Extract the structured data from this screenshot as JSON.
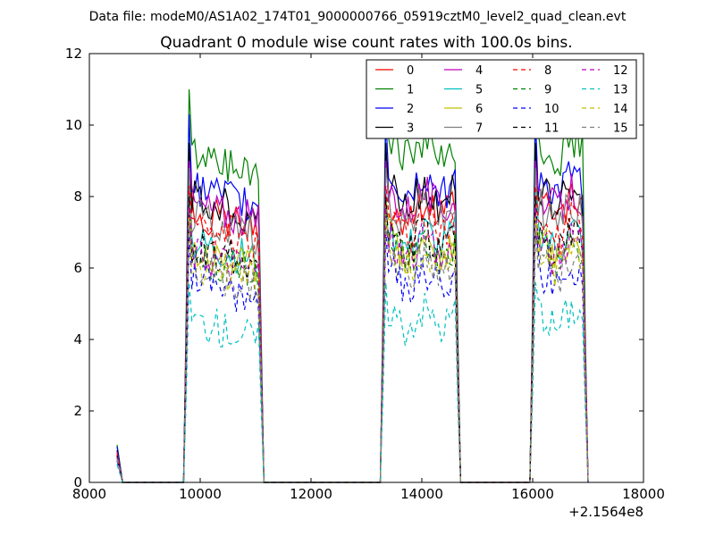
{
  "header": {
    "data_file": "Data file: modeM0/AS1A02_174T01_9000000766_05919cztM0_level2_quad_clean.evt"
  },
  "chart_data": {
    "type": "line",
    "title": "Quadrant 0 module wise count rates with 100.0s bins.",
    "xlabel": "",
    "ylabel": "",
    "x_offset_label": "+2.1564e8",
    "xlim": [
      8000,
      18000
    ],
    "ylim": [
      0,
      12
    ],
    "x_ticks": [
      "8000",
      "10000",
      "12000",
      "14000",
      "16000",
      "18000"
    ],
    "y_ticks": [
      "0",
      "2",
      "4",
      "6",
      "8",
      "10",
      "12"
    ],
    "legend_position": "top-right",
    "segments": [
      {
        "start": 9700,
        "end": 11100
      },
      {
        "start": 13250,
        "end": 14650
      },
      {
        "start": 15950,
        "end": 16950
      }
    ],
    "series": [
      {
        "name": "0",
        "color": "#ff0000",
        "dash": "solid",
        "level": 7.6,
        "peak": 9.0,
        "start": 0.85
      },
      {
        "name": "1",
        "color": "#008000",
        "dash": "solid",
        "level": 9.3,
        "peak": 11.0,
        "start": 1.05
      },
      {
        "name": "2",
        "color": "#0000ff",
        "dash": "solid",
        "level": 8.3,
        "peak": 10.3,
        "start": 1.0
      },
      {
        "name": "3",
        "color": "#000000",
        "dash": "solid",
        "level": 8.0,
        "peak": 9.5,
        "start": 0.9
      },
      {
        "name": "4",
        "color": "#bf00bf",
        "dash": "solid",
        "level": 7.9,
        "peak": 9.0,
        "start": 0.85
      },
      {
        "name": "5",
        "color": "#00bfbf",
        "dash": "solid",
        "level": 6.8,
        "peak": 8.2,
        "start": 0.75
      },
      {
        "name": "6",
        "color": "#bfbf00",
        "dash": "solid",
        "level": 6.6,
        "peak": 7.9,
        "start": 0.7
      },
      {
        "name": "7",
        "color": "#808080",
        "dash": "solid",
        "level": 7.5,
        "peak": 8.8,
        "start": 0.8
      },
      {
        "name": "8",
        "color": "#ff0000",
        "dash": "dashed",
        "level": 7.1,
        "peak": 8.3,
        "start": 0.8
      },
      {
        "name": "9",
        "color": "#008000",
        "dash": "dashed",
        "level": 6.4,
        "peak": 7.6,
        "start": 0.7
      },
      {
        "name": "10",
        "color": "#0000ff",
        "dash": "dashed",
        "level": 5.7,
        "peak": 7.0,
        "start": 0.6
      },
      {
        "name": "11",
        "color": "#000000",
        "dash": "dashed",
        "level": 6.7,
        "peak": 8.0,
        "start": 0.75
      },
      {
        "name": "12",
        "color": "#bf00bf",
        "dash": "dashed",
        "level": 6.5,
        "peak": 7.7,
        "start": 0.7
      },
      {
        "name": "13",
        "color": "#00bfbf",
        "dash": "dashed",
        "level": 4.6,
        "peak": 5.6,
        "start": 0.5
      },
      {
        "name": "14",
        "color": "#bfbf00",
        "dash": "dashed",
        "level": 6.2,
        "peak": 7.4,
        "start": 0.65
      },
      {
        "name": "15",
        "color": "#808080",
        "dash": "dashed",
        "level": 6.0,
        "peak": 7.2,
        "start": 0.65
      }
    ]
  }
}
